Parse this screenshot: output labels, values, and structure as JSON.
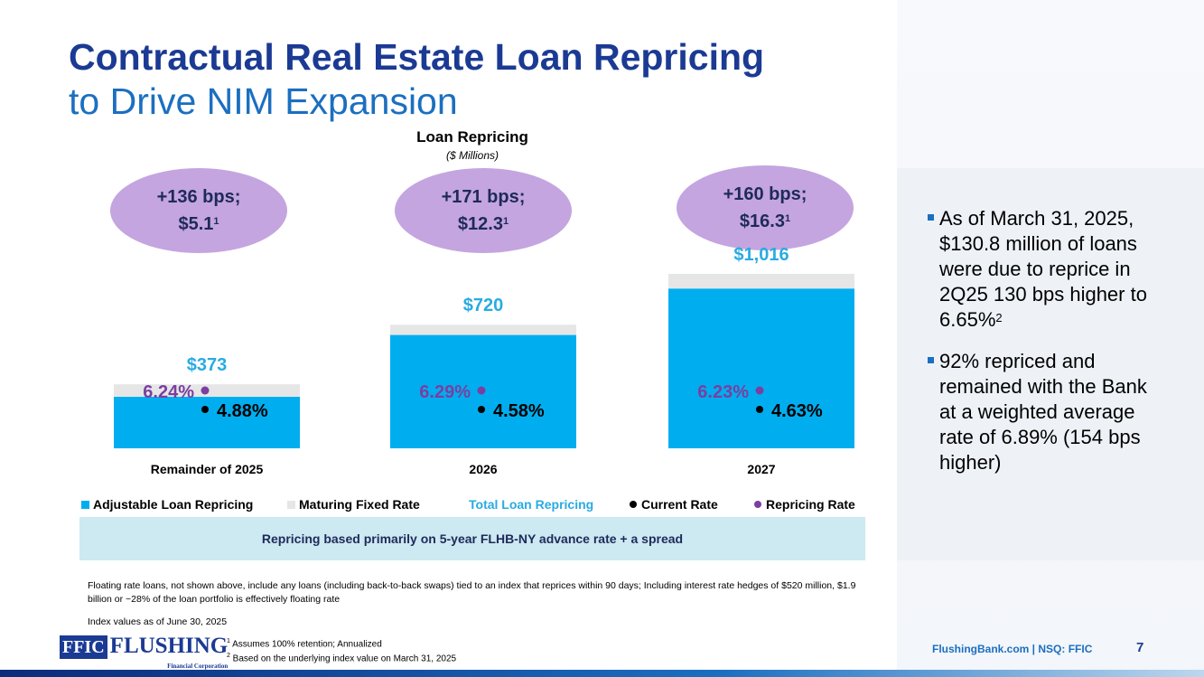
{
  "header": {
    "title_line1": "Contractual Real Estate Loan Repricing",
    "title_line2": "to Drive NIM Expansion"
  },
  "colors": {
    "title_dark": "#1b3a93",
    "title_light": "#1b6fc0",
    "adjustable": "#00aeef",
    "maturing": "#e6e6e6",
    "total_label": "#29abe2",
    "current_rate": "#000000",
    "repricing_rate": "#7a3fa0",
    "bubble": "#c4a5e0"
  },
  "chart_data": {
    "type": "bar",
    "stacked": true,
    "title": "Loan Repricing",
    "subtitle": "($ Millions)",
    "categories": [
      "Remainder of 2025",
      "2026",
      "2027"
    ],
    "series": [
      {
        "name": "Adjustable Loan Repricing",
        "values": [
          300,
          660,
          930
        ]
      },
      {
        "name": "Maturing Fixed Rate",
        "values": [
          73,
          60,
          86
        ]
      }
    ],
    "totals": [
      373,
      720,
      1016
    ],
    "total_labels": [
      "$373",
      "$720",
      "$1,016"
    ],
    "current_rate_labels": [
      "4.88%",
      "4.58%",
      "4.63%"
    ],
    "repricing_rate_labels": [
      "6.24%",
      "6.29%",
      "6.23%"
    ],
    "bubbles": [
      {
        "line1": "+136 bps;",
        "line2": "$5.1",
        "sup": "1"
      },
      {
        "line1": "+171 bps;",
        "line2": "$12.3",
        "sup": "1"
      },
      {
        "line1": "+160 bps;",
        "line2": "$16.3",
        "sup": "1"
      }
    ],
    "legend": {
      "adjustable": "Adjustable Loan Repricing",
      "maturing": "Maturing Fixed Rate",
      "total": "Total Loan Repricing",
      "current": "Current Rate",
      "repricing": "Repricing Rate"
    },
    "ylim": [
      0,
      1100
    ]
  },
  "banner": "Repricing based primarily on 5-year FLHB-NY advance rate + a spread",
  "bullets": [
    {
      "text": "As of March 31, 2025, $130.8 million of loans were due to reprice in 2Q25 130 bps higher to 6.65%",
      "sup": "2"
    },
    {
      "text": "92% repriced and remained with the Bank at a weighted average rate of 6.89% (154 bps higher)",
      "sup": ""
    }
  ],
  "footnotes": {
    "floating": "Floating rate loans, not shown above, include any loans (including back-to-back swaps) tied to an index that reprices within 90 days; Including interest rate hedges of $520 million, $1.9 billion or ~28% of the loan portfolio is effectively floating rate",
    "index": "Index values as of June 30, 2025",
    "ref1_num": "1",
    "ref1": " Assumes 100% retention; Annualized",
    "ref2_num": "2",
    "ref2": " Based on the underlying index value on March 31, 2025"
  },
  "logo": {
    "ffic": "FFIC",
    "flushing": "FLUSHING",
    "sub": "Financial Corporation"
  },
  "footer": {
    "site": "FlushingBank.com  |  NSQ: FFIC",
    "page": "7"
  }
}
